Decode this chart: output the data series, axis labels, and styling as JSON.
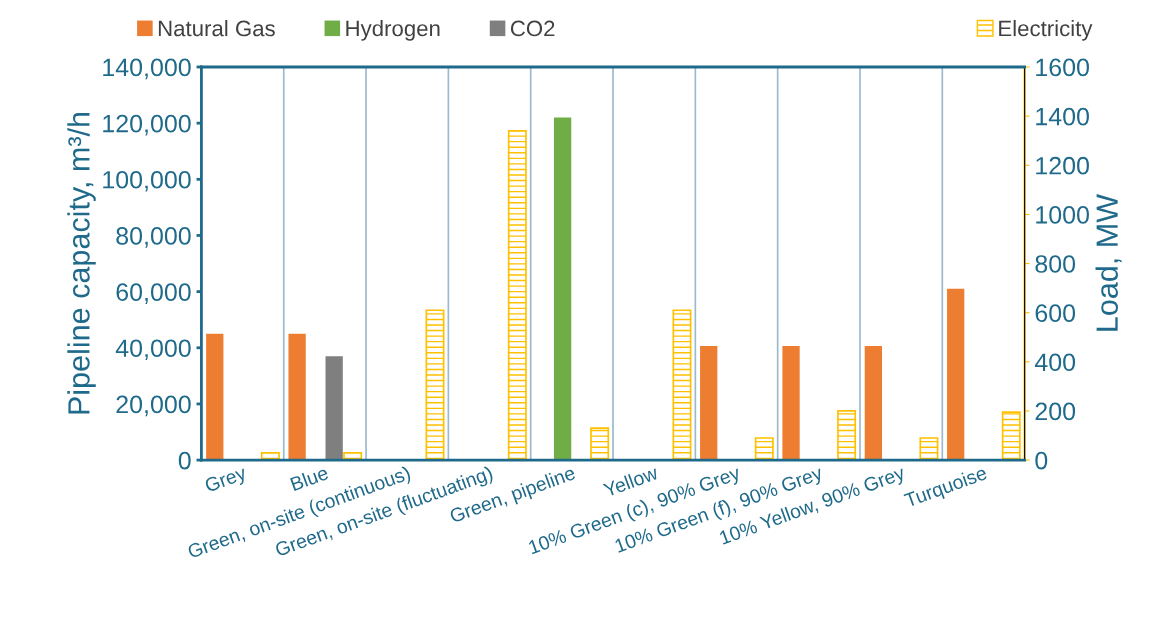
{
  "chart_data": {
    "type": "bar",
    "categories": [
      "Grey",
      "Blue",
      "Green, on-site (continuous)",
      "Green, on-site (fluctuating)",
      "Green, pipeline",
      "Yellow",
      "10% Green (c), 90% Grey",
      "10% Green (f), 90% Grey",
      "10% Yellow, 90% Grey",
      "Turquoise"
    ],
    "series": [
      {
        "name": "Natural Gas",
        "color": "#ed7d31",
        "values": [
          45000,
          45000,
          null,
          null,
          null,
          null,
          40600,
          40600,
          40600,
          61000
        ]
      },
      {
        "name": "Hydrogen",
        "color": "#70ad47",
        "values": [
          null,
          null,
          null,
          null,
          122000,
          null,
          null,
          null,
          null,
          null
        ]
      },
      {
        "name": "CO2",
        "color": "#7f7f7f",
        "values": [
          null,
          37000,
          null,
          null,
          null,
          null,
          null,
          null,
          null,
          null
        ]
      },
      {
        "name": "Electricity",
        "color": "#ffc000",
        "axis": "y2",
        "values": [
          30,
          30,
          610,
          1340,
          130,
          610,
          90,
          200,
          90,
          195
        ]
      }
    ],
    "ylabel": "Pipeline capacity, m³/h",
    "y2label": "Load, MW",
    "ylim": [
      0,
      140000
    ],
    "yticks": [
      {
        "value": 0,
        "label": "0"
      },
      {
        "value": 20000,
        "label": "20,000"
      },
      {
        "value": 40000,
        "label": "40,000"
      },
      {
        "value": 60000,
        "label": "60,000"
      },
      {
        "value": 80000,
        "label": "80,000"
      },
      {
        "value": 100000,
        "label": "100,000"
      },
      {
        "value": 120000,
        "label": "120,000"
      },
      {
        "value": 140000,
        "label": "140,000"
      }
    ],
    "y2lim": [
      0,
      1600
    ],
    "y2ticks": [
      0,
      200,
      400,
      600,
      800,
      1000,
      1200,
      1400,
      1600
    ],
    "grid": "x",
    "legend": "top"
  }
}
